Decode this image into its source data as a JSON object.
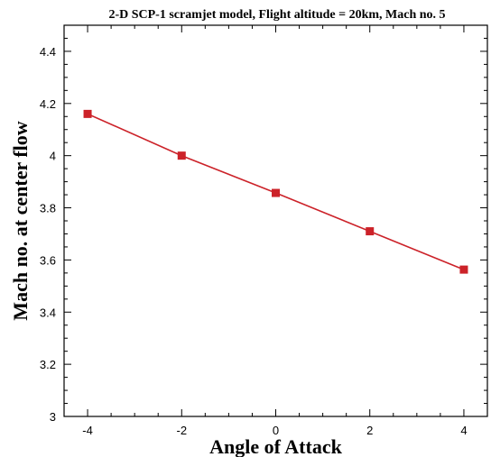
{
  "chart_data": {
    "type": "line",
    "title": "2-D SCP-1 scramjet model, Flight altitude = 20km, Mach no. 5",
    "xlabel": "Angle of Attack",
    "ylabel": "Mach no. at center flow",
    "xlim": [
      -4.5,
      4.5
    ],
    "ylim": [
      3,
      4.5
    ],
    "xticks": [
      -4,
      -2,
      0,
      2,
      4
    ],
    "xtick_labels": [
      "-4",
      "-2",
      "0",
      "2",
      "4"
    ],
    "yticks": [
      3,
      3.2,
      3.4,
      3.6,
      3.8,
      4,
      4.2,
      4.4
    ],
    "ytick_labels": [
      "3",
      "3.2",
      "3.4",
      "3.6",
      "3.8",
      "4",
      "4.2",
      "4.4"
    ],
    "grid": false,
    "series": [
      {
        "x": [
          -4,
          -2,
          0,
          2,
          4
        ],
        "values": [
          4.16,
          4.0,
          3.857,
          3.71,
          3.563
        ],
        "color": "#cc2229",
        "marker": "square"
      }
    ]
  }
}
